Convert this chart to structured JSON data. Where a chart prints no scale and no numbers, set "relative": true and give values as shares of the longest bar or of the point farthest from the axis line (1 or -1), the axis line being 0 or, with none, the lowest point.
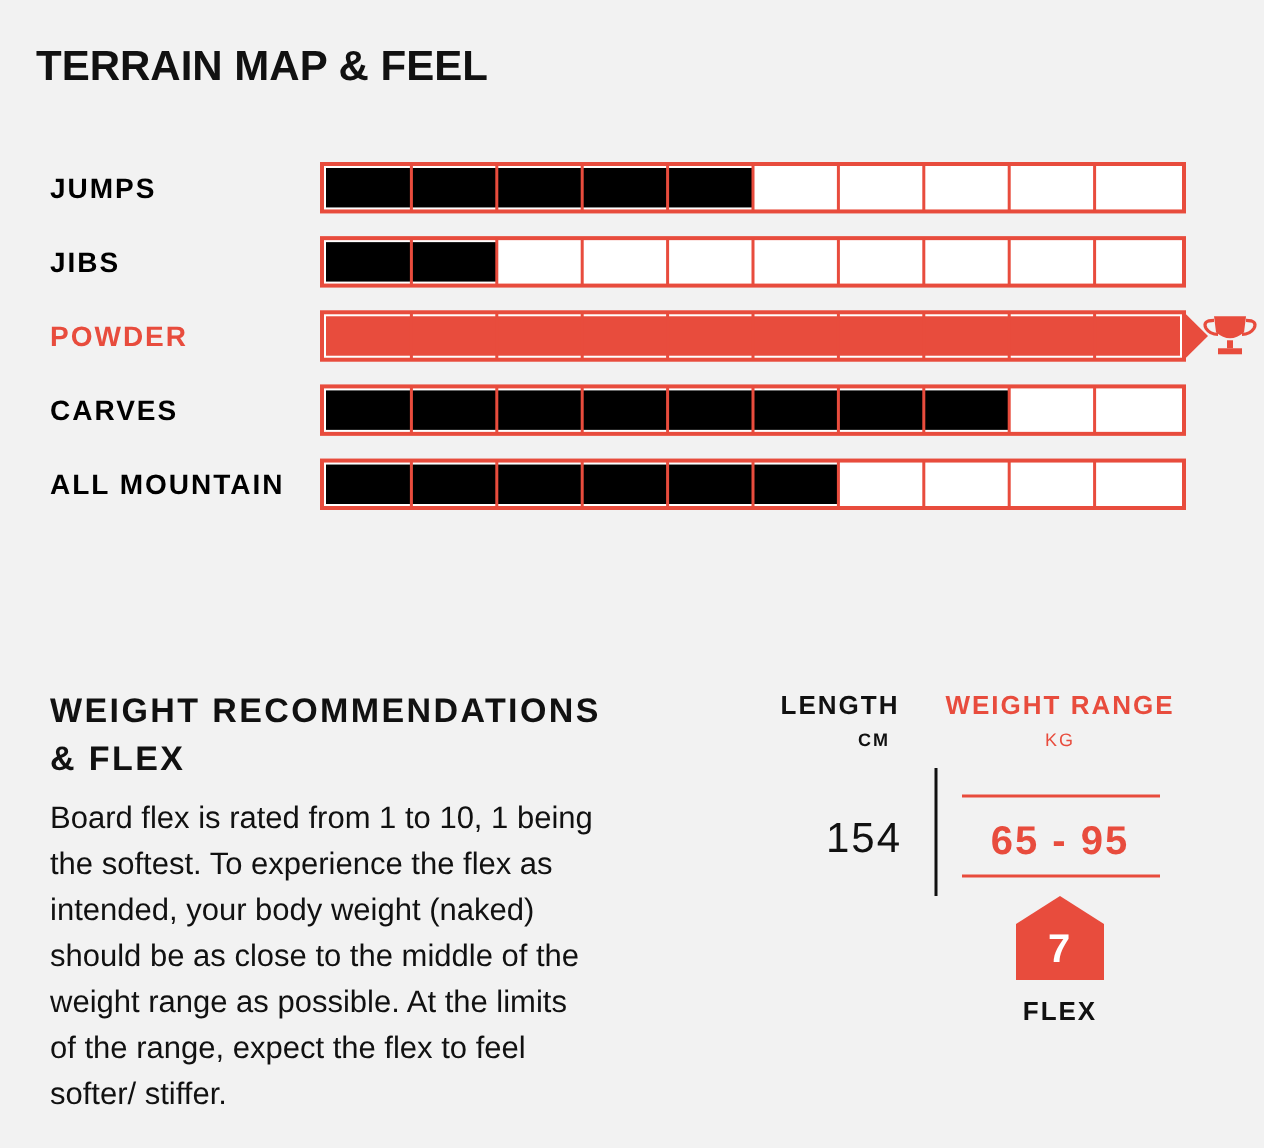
{
  "chart_data": [
    {
      "type": "bar",
      "title": "TERRAIN MAP & FEEL",
      "orientation": "horizontal",
      "relative": true,
      "categories": [
        "JUMPS",
        "JIBS",
        "POWDER",
        "CARVES",
        "ALL MOUNTAIN"
      ],
      "values": [
        0.5,
        0.2,
        1,
        0.8,
        0.6
      ],
      "colors": [
        "#000000",
        "#000000",
        "#e84c3d",
        "#000000",
        "#000000"
      ]
    },
    {
      "type": "other",
      "title": "WEIGHT RECOMMENDATIONS & FLEX",
      "subtitle": "Board flex is rated from 1 to 10, 1 being the softest. To experience the flex as intended, your body weight (naked) should be as close to the middle of the weight range as possible. At the limits of the range, expect the flex to feel softer/ stiffer.",
      "annotations": [
        "LENGTH",
        "CM",
        "154",
        "WEIGHT RANGE",
        "KG",
        "65 - 95",
        "7",
        "FLEX"
      ]
    }
  ]
}
